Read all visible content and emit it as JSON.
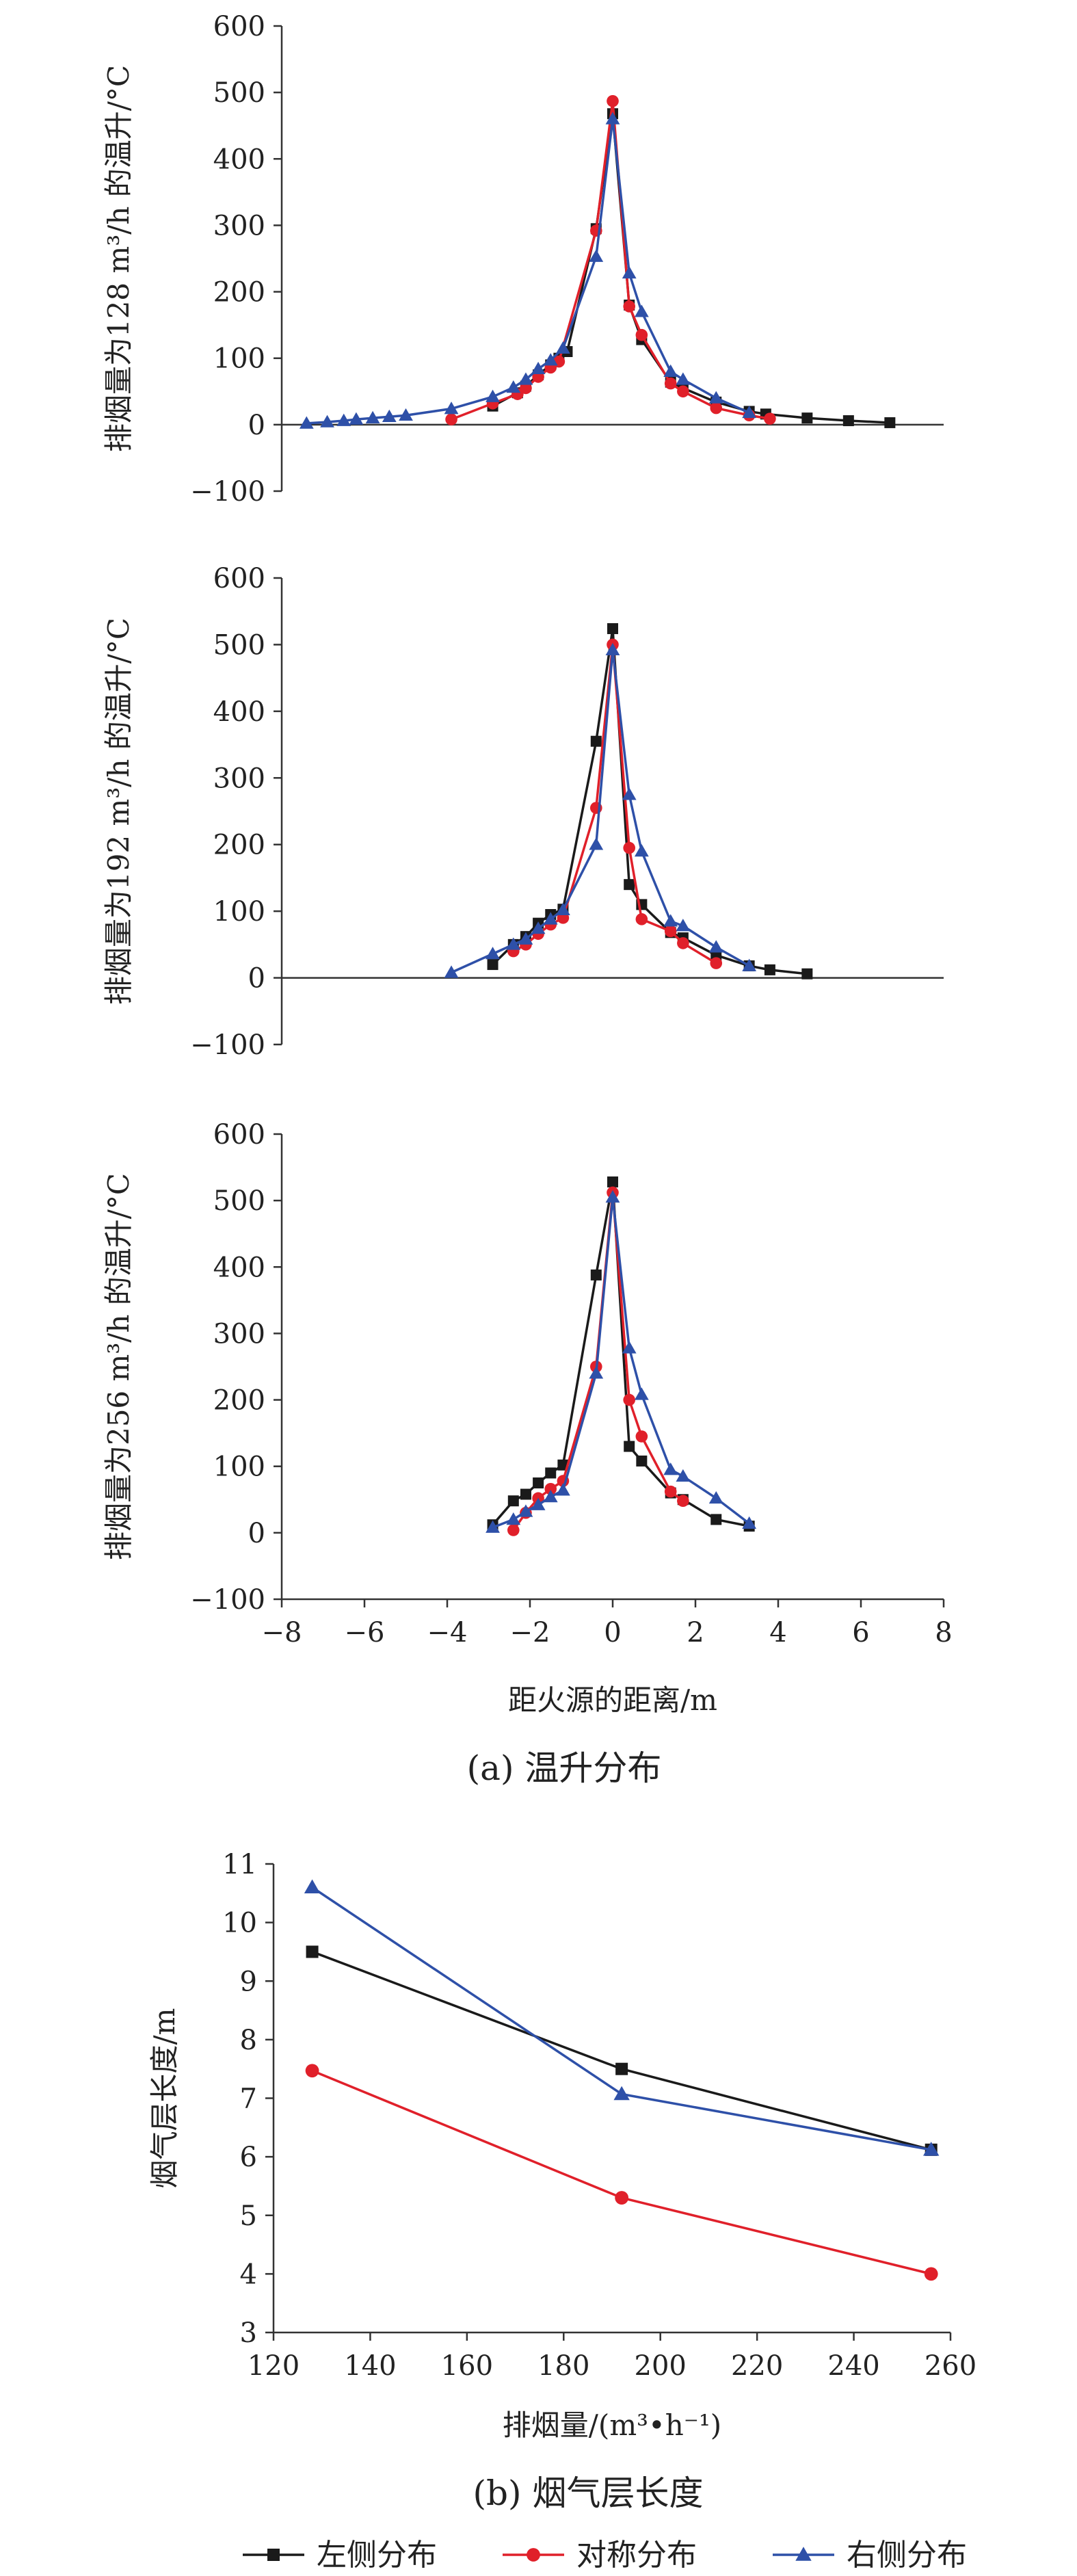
{
  "chart_data": [
    {
      "type": "line",
      "panel": "a-1",
      "xlim": [
        -8,
        8
      ],
      "ylim": [
        -100,
        600
      ],
      "yticks": [
        -100,
        0,
        100,
        200,
        300,
        400,
        500,
        600
      ],
      "ylabel": "排烟量为128 m³/h 的温升/°C",
      "series": [
        {
          "key": "left",
          "name": "左侧分布",
          "color": "#1a1a1a",
          "marker": "square",
          "points": [
            [
              -2.9,
              28
            ],
            [
              -2.3,
              48
            ],
            [
              -2.1,
              58
            ],
            [
              -1.8,
              75
            ],
            [
              -1.5,
              90
            ],
            [
              -1.3,
              100
            ],
            [
              -1.1,
              110
            ],
            [
              -0.4,
              295
            ],
            [
              0,
              468
            ],
            [
              0.4,
              180
            ],
            [
              0.7,
              128
            ],
            [
              1.4,
              64
            ],
            [
              1.7,
              55
            ],
            [
              2.5,
              34
            ],
            [
              3.3,
              20
            ],
            [
              3.7,
              16
            ],
            [
              4.7,
              10
            ],
            [
              5.7,
              6
            ],
            [
              6.7,
              3
            ]
          ]
        },
        {
          "key": "sym",
          "name": "对称分布",
          "color": "#e0202a",
          "marker": "circle",
          "points": [
            [
              -3.9,
              8
            ],
            [
              -2.9,
              32
            ],
            [
              -2.3,
              46
            ],
            [
              -2.1,
              55
            ],
            [
              -1.8,
              72
            ],
            [
              -1.5,
              86
            ],
            [
              -1.3,
              95
            ],
            [
              -0.4,
              292
            ],
            [
              0,
              487
            ],
            [
              0.4,
              178
            ],
            [
              0.7,
              135
            ],
            [
              1.4,
              62
            ],
            [
              1.7,
              50
            ],
            [
              2.5,
              25
            ],
            [
              3.3,
              14
            ],
            [
              3.8,
              9
            ]
          ]
        },
        {
          "key": "right",
          "name": "右侧分布",
          "color": "#2e50a8",
          "marker": "triangle",
          "points": [
            [
              -7.4,
              2
            ],
            [
              -6.9,
              4
            ],
            [
              -6.5,
              6
            ],
            [
              -6.2,
              8
            ],
            [
              -5.8,
              10
            ],
            [
              -5.4,
              12
            ],
            [
              -5.0,
              14
            ],
            [
              -3.9,
              24
            ],
            [
              -2.9,
              42
            ],
            [
              -2.4,
              56
            ],
            [
              -2.1,
              68
            ],
            [
              -1.8,
              84
            ],
            [
              -1.5,
              97
            ],
            [
              -1.2,
              115
            ],
            [
              -0.4,
              253
            ],
            [
              0,
              460
            ],
            [
              0.4,
              228
            ],
            [
              0.7,
              170
            ],
            [
              1.4,
              80
            ],
            [
              1.7,
              68
            ],
            [
              2.5,
              40
            ],
            [
              3.3,
              18
            ]
          ]
        }
      ]
    },
    {
      "type": "line",
      "panel": "a-2",
      "xlim": [
        -8,
        8
      ],
      "ylim": [
        -100,
        600
      ],
      "yticks": [
        -100,
        0,
        100,
        200,
        300,
        400,
        500,
        600
      ],
      "ylabel": "排烟量为192 m³/h 的温升/°C",
      "series": [
        {
          "key": "left",
          "name": "左侧分布",
          "color": "#1a1a1a",
          "marker": "square",
          "points": [
            [
              -2.9,
              20
            ],
            [
              -2.4,
              50
            ],
            [
              -2.1,
              62
            ],
            [
              -1.8,
              82
            ],
            [
              -1.5,
              95
            ],
            [
              -1.2,
              103
            ],
            [
              -0.4,
              355
            ],
            [
              0,
              524
            ],
            [
              0.4,
              140
            ],
            [
              0.7,
              110
            ],
            [
              1.4,
              68
            ],
            [
              1.7,
              60
            ],
            [
              2.5,
              34
            ],
            [
              3.3,
              18
            ],
            [
              3.8,
              12
            ],
            [
              4.7,
              6
            ]
          ]
        },
        {
          "key": "sym",
          "name": "对称分布",
          "color": "#e0202a",
          "marker": "circle",
          "points": [
            [
              -2.4,
              40
            ],
            [
              -2.1,
              50
            ],
            [
              -1.8,
              66
            ],
            [
              -1.5,
              80
            ],
            [
              -1.2,
              90
            ],
            [
              -0.4,
              255
            ],
            [
              0,
              500
            ],
            [
              0.4,
              195
            ],
            [
              0.7,
              88
            ],
            [
              1.4,
              70
            ],
            [
              1.7,
              52
            ],
            [
              2.5,
              22
            ]
          ]
        },
        {
          "key": "right",
          "name": "右侧分布",
          "color": "#2e50a8",
          "marker": "triangle",
          "points": [
            [
              -3.9,
              8
            ],
            [
              -2.9,
              36
            ],
            [
              -2.4,
              50
            ],
            [
              -2.1,
              58
            ],
            [
              -1.8,
              74
            ],
            [
              -1.5,
              88
            ],
            [
              -1.2,
              102
            ],
            [
              -0.4,
              200
            ],
            [
              0,
              492
            ],
            [
              0.4,
              275
            ],
            [
              0.7,
              190
            ],
            [
              1.4,
              85
            ],
            [
              1.7,
              78
            ],
            [
              2.5,
              46
            ],
            [
              3.3,
              18
            ]
          ]
        }
      ]
    },
    {
      "type": "line",
      "panel": "a-3",
      "xlim": [
        -8,
        8
      ],
      "ylim": [
        -100,
        600
      ],
      "yticks": [
        -100,
        0,
        100,
        200,
        300,
        400,
        500,
        600
      ],
      "xticks": [
        -8,
        -6,
        -4,
        -2,
        0,
        2,
        4,
        6,
        8
      ],
      "xlabel": "距火源的距离/m",
      "ylabel": "排烟量为256 m³/h 的温升/°C",
      "series": [
        {
          "key": "left",
          "name": "左侧分布",
          "color": "#1a1a1a",
          "marker": "square",
          "points": [
            [
              -2.9,
              12
            ],
            [
              -2.4,
              48
            ],
            [
              -2.1,
              58
            ],
            [
              -1.8,
              75
            ],
            [
              -1.5,
              90
            ],
            [
              -1.2,
              102
            ],
            [
              -0.4,
              388
            ],
            [
              0,
              528
            ],
            [
              0.4,
              130
            ],
            [
              0.7,
              108
            ],
            [
              1.4,
              60
            ],
            [
              1.7,
              50
            ],
            [
              2.5,
              20
            ],
            [
              3.3,
              10
            ]
          ]
        },
        {
          "key": "sym",
          "name": "对称分布",
          "color": "#e0202a",
          "marker": "circle",
          "points": [
            [
              -2.4,
              4
            ],
            [
              -2.1,
              30
            ],
            [
              -1.8,
              52
            ],
            [
              -1.5,
              66
            ],
            [
              -1.2,
              78
            ],
            [
              -0.4,
              250
            ],
            [
              0,
              512
            ],
            [
              0.4,
              200
            ],
            [
              0.7,
              145
            ],
            [
              1.4,
              62
            ],
            [
              1.7,
              48
            ]
          ]
        },
        {
          "key": "right",
          "name": "右侧分布",
          "color": "#2e50a8",
          "marker": "triangle",
          "points": [
            [
              -2.9,
              8
            ],
            [
              -2.4,
              20
            ],
            [
              -2.1,
              32
            ],
            [
              -1.8,
              42
            ],
            [
              -1.5,
              54
            ],
            [
              -1.2,
              64
            ],
            [
              -0.4,
              240
            ],
            [
              0,
              505
            ],
            [
              0.4,
              278
            ],
            [
              0.7,
              208
            ],
            [
              1.4,
              95
            ],
            [
              1.7,
              85
            ],
            [
              2.5,
              52
            ],
            [
              3.3,
              14
            ]
          ]
        }
      ]
    },
    {
      "type": "line",
      "panel": "b",
      "xlim": [
        120,
        260
      ],
      "ylim": [
        3,
        11
      ],
      "xticks": [
        120,
        140,
        160,
        180,
        200,
        220,
        240,
        260
      ],
      "yticks": [
        3,
        4,
        5,
        6,
        7,
        8,
        9,
        10,
        11
      ],
      "xlabel": "排烟量/(m³•h⁻¹)",
      "ylabel": "烟气层长度/m",
      "series": [
        {
          "key": "left",
          "name": "左侧分布",
          "color": "#1a1a1a",
          "marker": "square",
          "points": [
            [
              128,
              9.5
            ],
            [
              192,
              7.5
            ],
            [
              256,
              6.12
            ]
          ]
        },
        {
          "key": "sym",
          "name": "对称分布",
          "color": "#e0202a",
          "marker": "circle",
          "points": [
            [
              128,
              7.47
            ],
            [
              192,
              5.3
            ],
            [
              256,
              4.0
            ]
          ]
        },
        {
          "key": "right",
          "name": "右侧分布",
          "color": "#2e50a8",
          "marker": "triangle",
          "points": [
            [
              128,
              10.6
            ],
            [
              192,
              7.07
            ],
            [
              256,
              6.12
            ]
          ]
        }
      ]
    }
  ],
  "captions": {
    "a": "(a) 温升分布",
    "b": "(b) 烟气层长度"
  },
  "legend": {
    "placement": "bottom",
    "items": [
      {
        "key": "left",
        "label": "左侧分布",
        "color": "#1a1a1a",
        "marker": "square"
      },
      {
        "key": "sym",
        "label": "对称分布",
        "color": "#e0202a",
        "marker": "circle"
      },
      {
        "key": "right",
        "label": "右侧分布",
        "color": "#2e50a8",
        "marker": "triangle"
      }
    ]
  }
}
